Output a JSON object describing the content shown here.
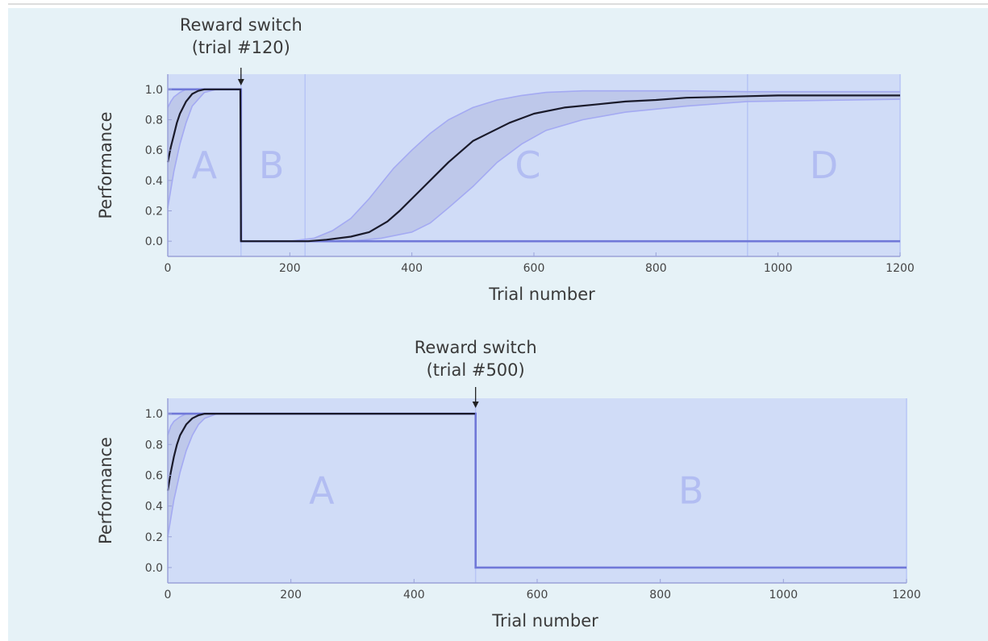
{
  "colors": {
    "page_background": "#e6f2f7",
    "plot_background": "#d0dcf7",
    "phase_line": "#b7c5f5",
    "phase_label": "#b2bdf2",
    "band_fill": "#b8c2e6",
    "band_edge": "#a4aaf2",
    "mean_line": "#1a1a2a",
    "target_line": "#7078d8",
    "axis": "#9aa2d8",
    "text": "#3a3a3a",
    "tick_text": "#444444"
  },
  "chart_data": [
    {
      "type": "line",
      "title": "",
      "xlabel": "Trial number",
      "ylabel": "Performance",
      "xlim": [
        0,
        1200
      ],
      "ylim": [
        -0.1,
        1.1
      ],
      "xticks": [
        0,
        200,
        400,
        600,
        800,
        1000,
        1200
      ],
      "yticks": [
        0.0,
        0.2,
        0.4,
        0.6,
        0.8,
        1.0
      ],
      "xtick_labels": [
        "0",
        "200",
        "400",
        "600",
        "800",
        "1000",
        "1200"
      ],
      "ytick_labels": [
        "0.0",
        "0.2",
        "0.4",
        "0.6",
        "0.8",
        "1.0"
      ],
      "grid": false,
      "annotation": {
        "lines": [
          "Reward switch",
          "(trial #120)"
        ],
        "x": 120
      },
      "phase_boundaries": [
        120,
        225,
        950
      ],
      "phases": [
        {
          "label": "A",
          "x": 60,
          "y": 0.5
        },
        {
          "label": "B",
          "x": 170,
          "y": 0.5
        },
        {
          "label": "C",
          "x": 590,
          "y": 0.5
        },
        {
          "label": "D",
          "x": 1075,
          "y": 0.5
        }
      ],
      "series": [
        {
          "role": "target",
          "x": [
            0,
            120,
            120,
            225,
            1200
          ],
          "y": [
            1.0,
            1.0,
            0.0,
            0.0,
            0.0
          ]
        },
        {
          "role": "mean",
          "x": [
            0,
            5,
            10,
            15,
            20,
            30,
            40,
            50,
            60,
            80,
            100,
            119,
            120,
            150,
            200,
            230,
            260,
            300,
            330,
            360,
            380,
            400,
            420,
            440,
            460,
            480,
            500,
            520,
            540,
            560,
            580,
            600,
            650,
            700,
            750,
            800,
            850,
            900,
            950,
            1000,
            1100,
            1200
          ],
          "y": [
            0.52,
            0.62,
            0.7,
            0.78,
            0.84,
            0.92,
            0.97,
            0.99,
            1.0,
            1.0,
            1.0,
            1.0,
            0.0,
            0.0,
            0.0,
            0.0,
            0.01,
            0.03,
            0.06,
            0.13,
            0.2,
            0.28,
            0.36,
            0.44,
            0.52,
            0.59,
            0.66,
            0.7,
            0.74,
            0.78,
            0.81,
            0.84,
            0.88,
            0.9,
            0.92,
            0.93,
            0.945,
            0.95,
            0.955,
            0.96,
            0.96,
            0.96
          ]
        },
        {
          "role": "upper",
          "x": [
            0,
            5,
            10,
            20,
            30,
            40,
            60,
            120,
            121,
            200,
            240,
            270,
            300,
            330,
            350,
            370,
            400,
            430,
            460,
            500,
            540,
            580,
            620,
            680,
            750,
            850,
            950,
            1200
          ],
          "y": [
            0.88,
            0.92,
            0.95,
            0.98,
            1.0,
            1.0,
            1.0,
            1.0,
            0.0,
            0.0,
            0.02,
            0.07,
            0.15,
            0.28,
            0.38,
            0.48,
            0.6,
            0.71,
            0.8,
            0.88,
            0.93,
            0.96,
            0.98,
            0.99,
            0.99,
            0.99,
            0.985,
            0.985
          ]
        },
        {
          "role": "lower",
          "x": [
            0,
            5,
            10,
            20,
            30,
            40,
            60,
            80,
            120,
            121,
            200,
            240,
            300,
            350,
            400,
            430,
            460,
            500,
            540,
            580,
            620,
            680,
            750,
            850,
            950,
            1200
          ],
          "y": [
            0.22,
            0.34,
            0.46,
            0.64,
            0.78,
            0.89,
            0.98,
            1.0,
            1.0,
            0.0,
            0.0,
            0.0,
            0.0,
            0.02,
            0.06,
            0.12,
            0.22,
            0.36,
            0.52,
            0.64,
            0.73,
            0.8,
            0.85,
            0.89,
            0.92,
            0.935
          ]
        }
      ]
    },
    {
      "type": "line",
      "title": "",
      "xlabel": "Trial number",
      "ylabel": "Performance",
      "xlim": [
        0,
        1200
      ],
      "ylim": [
        -0.1,
        1.1
      ],
      "xticks": [
        0,
        200,
        400,
        600,
        800,
        1000,
        1200
      ],
      "yticks": [
        0.0,
        0.2,
        0.4,
        0.6,
        0.8,
        1.0
      ],
      "xtick_labels": [
        "0",
        "200",
        "400",
        "600",
        "800",
        "1000",
        "1200"
      ],
      "ytick_labels": [
        "0.0",
        "0.2",
        "0.4",
        "0.6",
        "0.8",
        "1.0"
      ],
      "grid": false,
      "annotation": {
        "lines": [
          "Reward switch",
          "(trial #500)"
        ],
        "x": 500
      },
      "phase_boundaries": [
        500
      ],
      "phases": [
        {
          "label": "A",
          "x": 250,
          "y": 0.5
        },
        {
          "label": "B",
          "x": 850,
          "y": 0.5
        }
      ],
      "series": [
        {
          "role": "target",
          "x": [
            0,
            500,
            500,
            1200
          ],
          "y": [
            1.0,
            1.0,
            0.0,
            0.0
          ]
        },
        {
          "role": "mean",
          "x": [
            0,
            5,
            10,
            15,
            20,
            30,
            40,
            50,
            60,
            100,
            200,
            300,
            400,
            499
          ],
          "y": [
            0.5,
            0.62,
            0.72,
            0.8,
            0.86,
            0.93,
            0.97,
            0.99,
            1.0,
            1.0,
            1.0,
            1.0,
            1.0,
            1.0
          ]
        },
        {
          "role": "upper",
          "x": [
            0,
            5,
            10,
            20,
            30,
            40,
            60,
            100,
            499
          ],
          "y": [
            0.86,
            0.92,
            0.95,
            0.98,
            1.0,
            1.0,
            1.0,
            1.0,
            1.0
          ]
        },
        {
          "role": "lower",
          "x": [
            0,
            5,
            10,
            20,
            30,
            40,
            50,
            60,
            80,
            100,
            499
          ],
          "y": [
            0.2,
            0.32,
            0.44,
            0.62,
            0.76,
            0.86,
            0.93,
            0.97,
            1.0,
            1.0,
            1.0
          ]
        }
      ]
    }
  ]
}
